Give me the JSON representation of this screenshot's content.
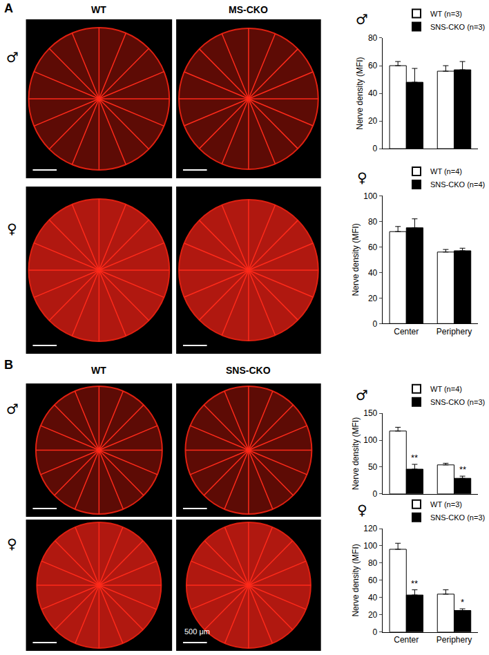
{
  "figure": {
    "panels": [
      {
        "label": "A",
        "columns": [
          "WT",
          "MS-CKO"
        ],
        "rows": [
          "♂",
          "♀"
        ]
      },
      {
        "label": "B",
        "columns": [
          "WT",
          "SNS-CKO"
        ],
        "rows": [
          "♂",
          "♀"
        ],
        "scale_bar": "500 μm"
      }
    ]
  },
  "chart_data": [
    {
      "type": "bar",
      "title": "♂",
      "y_label": "Nerve density (MFI)",
      "categories": [
        "Center",
        "Periphery"
      ],
      "series": [
        {
          "name": "WT (n=3)",
          "color": "#ffffff",
          "values": [
            60,
            56
          ],
          "error": [
            3,
            4
          ]
        },
        {
          "name": "SNS-CKO (n=3)",
          "color": "#000000",
          "values": [
            48,
            57
          ],
          "error": [
            10,
            6
          ]
        }
      ],
      "ylim": [
        0,
        80
      ],
      "yticks": [
        0,
        20,
        40,
        60,
        80
      ],
      "grid": false,
      "legend": "top right",
      "tick_labels": "y"
    },
    {
      "type": "bar",
      "title": "♀",
      "y_label": "Nerve density (MFI)",
      "categories": [
        "Center",
        "Periphery"
      ],
      "series": [
        {
          "name": "WT (n=4)",
          "color": "#ffffff",
          "values": [
            72,
            56
          ],
          "error": [
            4,
            2
          ]
        },
        {
          "name": "SNS-CKO (n=4)",
          "color": "#000000",
          "values": [
            75,
            57
          ],
          "error": [
            7,
            2
          ]
        }
      ],
      "ylim": [
        0,
        100
      ],
      "yticks": [
        0,
        20,
        40,
        60,
        80,
        100
      ],
      "grid": false,
      "legend": "top right"
    },
    {
      "type": "bar",
      "title": "♂",
      "y_label": "Nerve density (MFI)",
      "categories": [
        "Center",
        "Periphery"
      ],
      "series": [
        {
          "name": "WT (n=4)",
          "color": "#ffffff",
          "values": [
            117,
            54
          ],
          "error": [
            7,
            3
          ]
        },
        {
          "name": "SNS-CKO (n=3)",
          "color": "#000000",
          "values": [
            46,
            29
          ],
          "error": [
            9,
            4
          ]
        }
      ],
      "annotations": [
        {
          "text": "**",
          "category": "Center",
          "series": "SNS-CKO (n=3)"
        },
        {
          "text": "**",
          "category": "Periphery",
          "series": "SNS-CKO (n=3)"
        }
      ],
      "ylim": [
        0,
        150
      ],
      "yticks": [
        0,
        50,
        100,
        150
      ],
      "grid": false,
      "legend": "top right",
      "tick_labels": "y"
    },
    {
      "type": "bar",
      "title": "♀",
      "y_label": "Nerve density (MFI)",
      "categories": [
        "Center",
        "Periphery"
      ],
      "series": [
        {
          "name": "WT (n=3)",
          "color": "#ffffff",
          "values": [
            96,
            44
          ],
          "error": [
            7,
            5
          ]
        },
        {
          "name": "SNS-CKO (n=3)",
          "color": "#000000",
          "values": [
            43,
            25
          ],
          "error": [
            6,
            2
          ]
        }
      ],
      "annotations": [
        {
          "text": "**",
          "category": "Center",
          "series": "SNS-CKO (n=3)"
        },
        {
          "text": "*",
          "category": "Periphery",
          "series": "SNS-CKO (n=3)"
        }
      ],
      "ylim": [
        0,
        120
      ],
      "yticks": [
        0,
        20,
        40,
        60,
        80,
        100,
        120
      ],
      "grid": false,
      "legend": "top right"
    }
  ]
}
